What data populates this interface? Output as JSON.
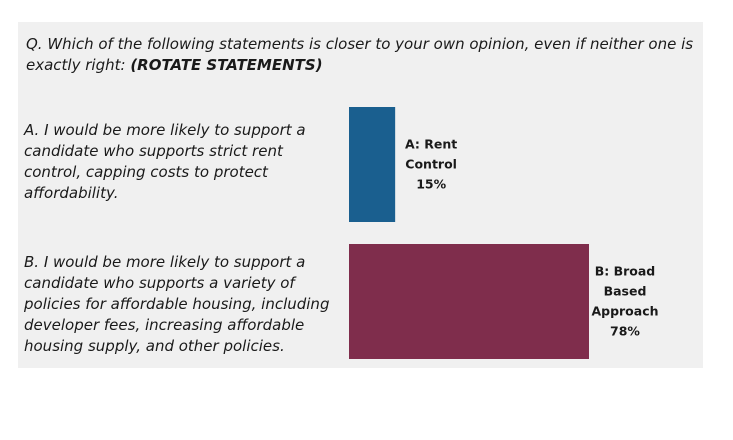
{
  "question": {
    "text": "Q. Which of the following statements is closer to your own opinion, even if neither one is exactly right: ",
    "instruction": "(ROTATE STATEMENTS)"
  },
  "statements": [
    {
      "text": "A. I would be more likely to support a candidate who supports strict rent control, capping costs to protect affordability."
    },
    {
      "text": "B. I would be more likely to support a candidate who supports a variety of policies for affordable housing, including developer fees, increasing affordable housing supply, and other policies."
    }
  ],
  "chart_data": {
    "type": "bar",
    "orientation": "horizontal",
    "categories": [
      "A: Rent Control",
      "B: Broad Based Approach"
    ],
    "values": [
      15,
      78
    ],
    "value_labels": [
      "15%",
      "78%"
    ],
    "label_lines": [
      [
        "A: Rent",
        "Control",
        "15%"
      ],
      [
        "B: Broad",
        "Based",
        "Approach",
        "78%"
      ]
    ],
    "colors": [
      "#1a5f8f",
      "#7f2d4c"
    ],
    "xlim": [
      0,
      100
    ],
    "grid": false,
    "title": "",
    "xlabel": "",
    "ylabel": ""
  }
}
